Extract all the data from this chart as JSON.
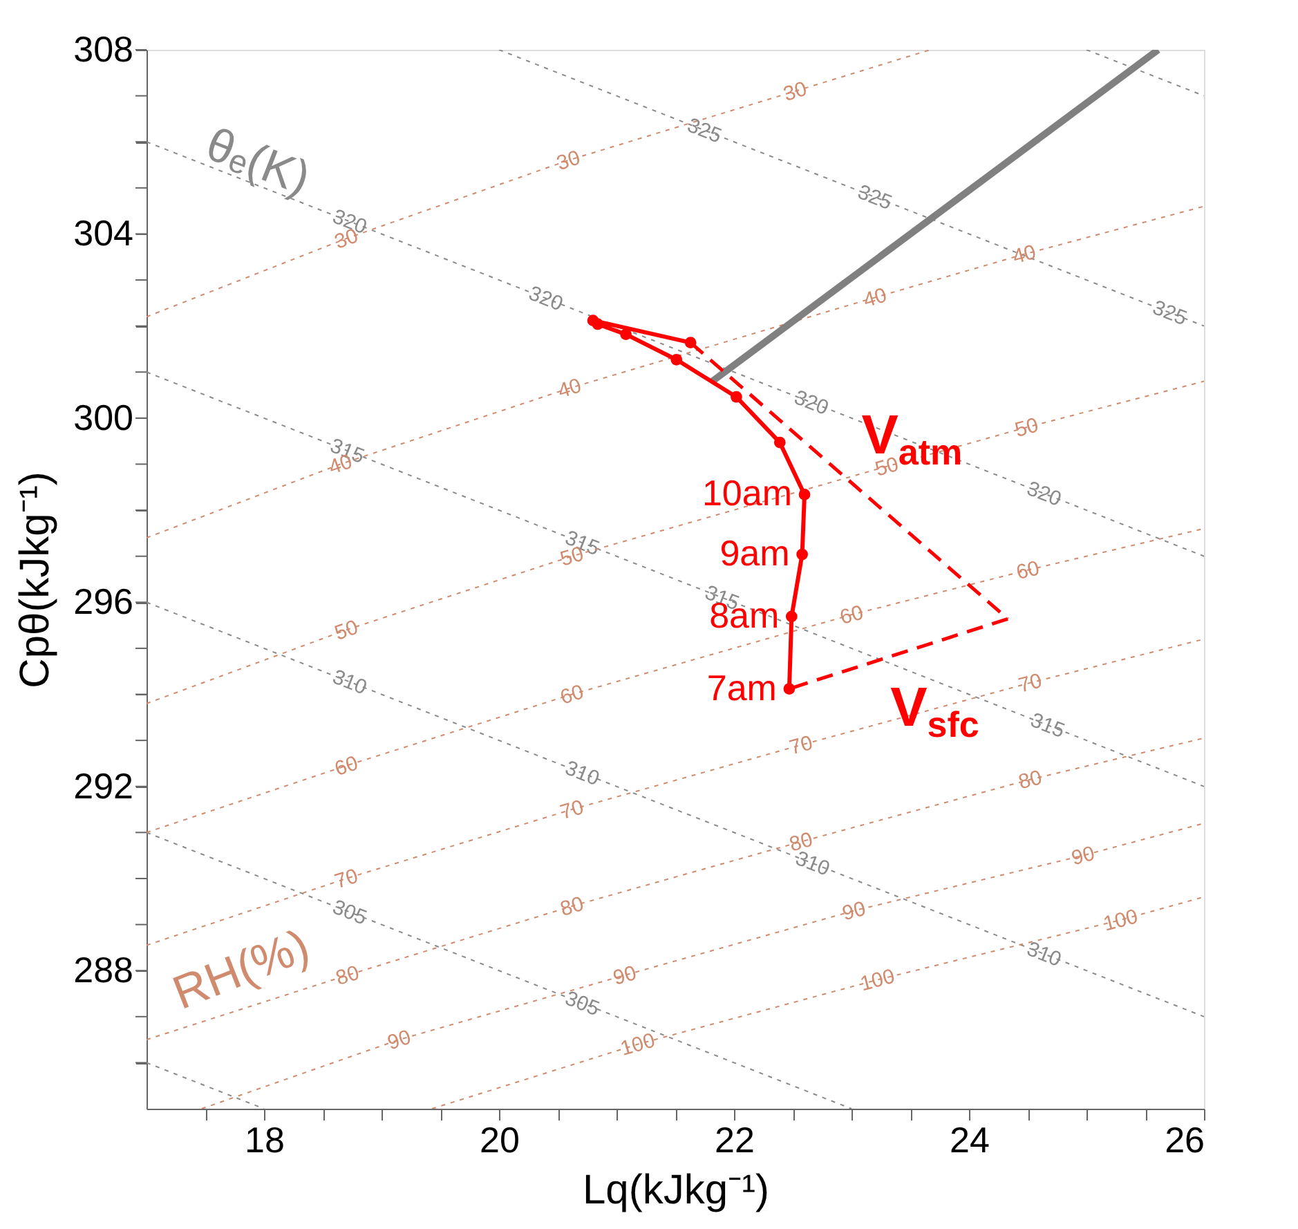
{
  "chart_data": {
    "type": "line",
    "xlabel": "Lq(kJkg⁻¹)",
    "ylabel": "Cpθ(kJkg⁻¹)",
    "xlim": [
      17,
      26
    ],
    "ylim": [
      285,
      308
    ],
    "xticks": [
      {
        "value": 17.5,
        "label": null
      },
      18,
      {
        "value": 18.5,
        "label": null
      },
      {
        "value": 19,
        "label": null
      },
      {
        "value": 19.5,
        "label": null
      },
      20,
      {
        "value": 20.5,
        "label": null
      },
      {
        "value": 21,
        "label": null
      },
      {
        "value": 21.5,
        "label": null
      },
      22,
      {
        "value": 22.5,
        "label": null
      },
      {
        "value": 23,
        "label": null
      },
      {
        "value": 23.5,
        "label": null
      },
      24,
      {
        "value": 24.5,
        "label": null
      },
      {
        "value": 25,
        "label": null
      },
      {
        "value": 25.5,
        "label": null
      },
      26
    ],
    "yticks": [
      {
        "value": 286,
        "label": null
      },
      {
        "value": 287,
        "label": null
      },
      288,
      {
        "value": 289,
        "label": null
      },
      {
        "value": 290,
        "label": null
      },
      {
        "value": 291,
        "label": null
      },
      292,
      {
        "value": 293,
        "label": null
      },
      {
        "value": 294,
        "label": null
      },
      {
        "value": 295,
        "label": null
      },
      296,
      {
        "value": 297,
        "label": null
      },
      {
        "value": 298,
        "label": null
      },
      {
        "value": 299,
        "label": null
      },
      300,
      {
        "value": 301,
        "label": null
      },
      {
        "value": 302,
        "label": null
      },
      {
        "value": 303,
        "label": null
      },
      304,
      {
        "value": 305,
        "label": null
      },
      {
        "value": 306,
        "label": null
      },
      {
        "value": 307,
        "label": null
      },
      308
    ],
    "grid": false,
    "annotations": [
      "θₑ(K)",
      "RH(%)",
      {
        "text": "7am",
        "x": 22.47,
        "y": 294.12
      },
      {
        "text": "8am",
        "x": 22.49,
        "y": 295.69
      },
      {
        "text": "9am",
        "x": 22.58,
        "y": 297.04
      },
      {
        "text": "10am",
        "x": 22.6,
        "y": 298.34
      }
    ],
    "series": [
      {
        "color": "#8a8a8a",
        "line_style": "dotted",
        "marker": "none",
        "x": [
          25.0,
          26
        ],
        "values": [
          308,
          307
        ]
      },
      {
        "name": "325",
        "color": "#8a8a8a",
        "line_style": "dotted",
        "marker": "none",
        "x": [
          20,
          21.75,
          23.2,
          25.71,
          26
        ],
        "values": [
          308,
          306.25,
          304.8,
          302.29,
          302
        ]
      },
      {
        "name": "320",
        "color": "#8a8a8a",
        "line_style": "dotted",
        "marker": "none",
        "x": [
          17,
          18.73,
          20.4,
          22.66,
          24.64,
          26
        ],
        "values": [
          306,
          304.27,
          302.6,
          300.34,
          298.36,
          297
        ]
      },
      {
        "name": "315",
        "color": "#8a8a8a",
        "line_style": "dotted",
        "marker": "none",
        "x": [
          17,
          18.71,
          20.71,
          21.9,
          24.67,
          26
        ],
        "values": [
          301,
          299.29,
          297.29,
          296.1,
          293.33,
          292
        ]
      },
      {
        "name": "310",
        "color": "#8a8a8a",
        "line_style": "dotted",
        "marker": "none",
        "x": [
          17,
          18.73,
          20.71,
          22.67,
          24.64,
          26
        ],
        "values": [
          296,
          294.27,
          292.29,
          290.33,
          288.36,
          287
        ]
      },
      {
        "name": "305",
        "color": "#8a8a8a",
        "line_style": "dotted",
        "marker": "none",
        "x": [
          17,
          18.73,
          20.71,
          23
        ],
        "values": [
          291,
          289.27,
          287.29,
          285
        ]
      },
      {
        "color": "#8a8a8a",
        "line_style": "dotted",
        "marker": "none",
        "x": [
          17,
          18
        ],
        "values": [
          286,
          285
        ]
      },
      {
        "name": "30",
        "color": "#d08a6e",
        "line_style": "dotted",
        "marker": "none",
        "x": [
          17,
          18.7,
          20.59,
          22.52,
          23.67
        ],
        "values": [
          302.2,
          303.9,
          305.6,
          307.1,
          308
        ]
      },
      {
        "name": "40",
        "color": "#d08a6e",
        "line_style": "dotted",
        "marker": "none",
        "x": [
          17,
          18.65,
          20.6,
          23.2,
          24.47,
          26
        ],
        "values": [
          297.4,
          299.0,
          300.65,
          302.62,
          303.56,
          304.6
        ]
      },
      {
        "name": "50",
        "color": "#d08a6e",
        "line_style": "dotted",
        "marker": "none",
        "x": [
          17,
          18.7,
          20.62,
          23.3,
          24.49,
          26
        ],
        "values": [
          293.8,
          295.4,
          297.0,
          298.95,
          299.8,
          300.8
        ]
      },
      {
        "name": "60",
        "color": "#d08a6e",
        "line_style": "dotted",
        "marker": "none",
        "x": [
          17,
          18.7,
          20.62,
          23.0,
          24.5,
          26
        ],
        "values": [
          291.0,
          292.45,
          294.0,
          295.73,
          296.7,
          297.6
        ]
      },
      {
        "name": "70",
        "color": "#d08a6e",
        "line_style": "dotted",
        "marker": "none",
        "x": [
          17,
          18.7,
          20.62,
          22.57,
          24.52,
          26
        ],
        "values": [
          288.55,
          290.0,
          291.5,
          292.9,
          294.25,
          295.2
        ]
      },
      {
        "name": "80",
        "color": "#d08a6e",
        "line_style": "dotted",
        "marker": "none",
        "x": [
          17,
          18.71,
          20.62,
          22.57,
          24.52,
          26
        ],
        "values": [
          286.5,
          287.9,
          289.4,
          290.8,
          292.15,
          293.05
        ]
      },
      {
        "name": "90",
        "color": "#d08a6e",
        "line_style": "dotted",
        "marker": "none",
        "x": [
          17.47,
          19.15,
          21.07,
          23.02,
          24.97,
          26
        ],
        "values": [
          285.0,
          286.5,
          287.9,
          289.3,
          290.5,
          291.2
        ]
      },
      {
        "name": "100",
        "color": "#d08a6e",
        "line_style": "dotted",
        "marker": "none",
        "x": [
          19.43,
          21.18,
          23.22,
          25.29,
          26
        ],
        "values": [
          285.0,
          286.4,
          287.8,
          289.1,
          289.6
        ]
      },
      {
        "color": "#808080",
        "line_style": "solid",
        "marker": "none",
        "x": [
          21.81,
          25.61
        ],
        "values": [
          300.79,
          308
        ]
      },
      {
        "name": "V$_{atm}$",
        "color": "#ff0000",
        "line_style": "dashed",
        "x": [
          21.63,
          24.33
        ],
        "values": [
          301.64,
          295.64
        ]
      },
      {
        "name": "V$_{sfc}$",
        "color": "#ff0000",
        "line_style": "dashed",
        "x": [
          24.33,
          22.47
        ],
        "values": [
          295.64,
          294.12
        ]
      },
      {
        "color": "#ff0000",
        "line_style": "solid",
        "marker": "circle",
        "x": [
          22.47,
          22.49,
          22.58,
          22.6,
          22.39,
          22.02,
          21.51,
          21.08,
          20.84,
          20.8,
          21.63
        ],
        "values": [
          294.12,
          295.69,
          297.04,
          298.34,
          299.47,
          300.46,
          301.27,
          301.82,
          302.04,
          302.12,
          301.64
        ]
      }
    ]
  }
}
